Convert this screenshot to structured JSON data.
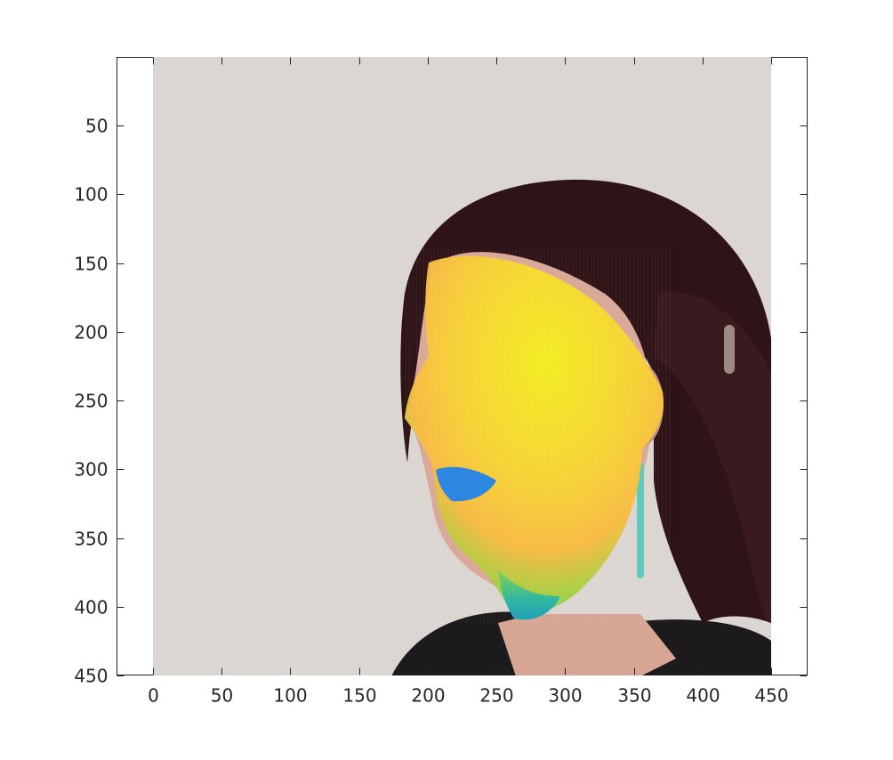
{
  "figure": {
    "background": "#ffffff",
    "axes": {
      "xlim": [
        -25,
        475
      ],
      "ylim": [
        0,
        450
      ],
      "y_direction": "reversed",
      "x_ticks": [
        0,
        50,
        100,
        150,
        200,
        250,
        300,
        350,
        400,
        450
      ],
      "x_tick_labels": [
        "0",
        "50",
        "100",
        "150",
        "200",
        "250",
        "300",
        "350",
        "400",
        "450"
      ],
      "y_ticks": [
        50,
        100,
        150,
        200,
        250,
        300,
        350,
        400,
        450
      ],
      "y_tick_labels": [
        "50",
        "100",
        "150",
        "200",
        "250",
        "300",
        "350",
        "400",
        "450"
      ],
      "grid": false,
      "box_color": "#262626"
    },
    "image": {
      "extent_x": [
        0,
        450
      ],
      "extent_y": [
        0,
        450
      ],
      "background_color": "#dcd6d2",
      "hair_color": "#2e1317",
      "skin_color": "#d9a898",
      "clothing_color": "#1c1a1c",
      "subject": "head-profile-with-face-mesh-overlay"
    },
    "mesh_overlay": {
      "colormap": "parula",
      "colors": [
        "#3a8fd6",
        "#2bb7a0",
        "#8ed04a",
        "#f5e625",
        "#fbc436"
      ]
    }
  }
}
